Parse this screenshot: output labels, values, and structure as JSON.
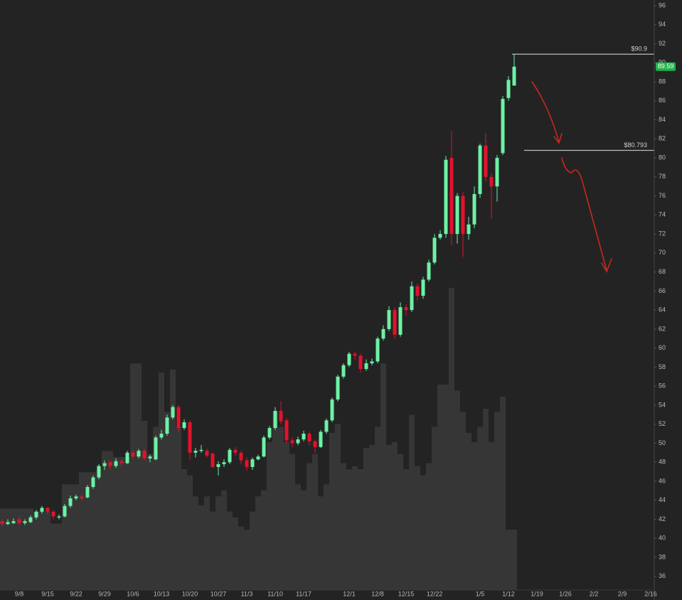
{
  "chart_data": {
    "type": "candlestick",
    "categories": [
      null,
      null,
      null,
      "9/8",
      null,
      null,
      null,
      null,
      "9/15",
      null,
      null,
      null,
      null,
      "9/22",
      null,
      null,
      null,
      null,
      "9/29",
      null,
      null,
      null,
      null,
      "10/6",
      null,
      null,
      null,
      null,
      "10/13",
      null,
      null,
      null,
      null,
      "10/20",
      null,
      null,
      null,
      null,
      "10/27",
      null,
      null,
      null,
      null,
      "11/3",
      null,
      null,
      null,
      null,
      "11/10",
      null,
      null,
      null,
      null,
      "11/17",
      null,
      null,
      null,
      null,
      null,
      null,
      null,
      "12/1",
      null,
      null,
      null,
      null,
      "12/8",
      null,
      null,
      null,
      null,
      "12/15",
      null,
      null,
      null,
      null,
      "12/22",
      null,
      null,
      null,
      null,
      null,
      null,
      null,
      "1/5",
      null,
      null,
      null,
      null,
      "1/12",
      null,
      null,
      null,
      null,
      "1/19",
      null,
      null,
      null,
      null,
      "1/26",
      null,
      null,
      null,
      null,
      "2/2",
      null,
      null,
      null,
      null,
      "2/9",
      null,
      null,
      null,
      null,
      "2/16"
    ],
    "open": [
      41.8,
      41.5,
      41.6,
      42,
      41.6,
      41.7,
      42.2,
      42.8,
      43.2,
      42.8,
      42.2,
      42.3,
      43.4,
      44.2,
      44.4,
      44.3,
      45.4,
      46.4,
      47.6,
      48,
      47.6,
      48.1,
      47.9,
      49,
      48.6,
      49.2,
      48.4,
      48.3,
      50.6,
      51,
      52.7,
      53.8,
      51.6,
      52.2,
      49,
      49.2,
      49.2,
      48.9,
      47.5,
      47.8,
      48,
      49.3,
      49,
      48.2,
      47.5,
      48.3,
      48.6,
      50.6,
      51.6,
      53.4,
      52.4,
      50.3,
      50,
      50.4,
      51,
      50.2,
      49.6,
      51.2,
      52.4,
      54.6,
      57,
      58.2,
      59.4,
      59.2,
      57.8,
      58.4,
      58.6,
      61,
      62,
      64,
      61.4,
      64.3,
      64,
      66.5,
      65.5,
      67.2,
      69,
      71.6,
      72,
      80,
      72,
      76,
      72,
      73,
      76.2,
      81.3,
      78,
      77,
      80.5,
      86.3,
      87.6,
      null,
      null,
      null,
      null,
      null,
      null,
      null,
      null,
      null,
      null,
      null,
      null,
      null,
      null,
      null,
      null,
      null,
      null,
      null,
      null,
      null,
      null,
      null,
      null
    ],
    "high": [
      42,
      42,
      42.1,
      42.3,
      42,
      42.4,
      43,
      43.4,
      43.3,
      43,
      42.5,
      43.6,
      44.5,
      44.6,
      44.6,
      45.6,
      46.6,
      47.8,
      48.2,
      48.2,
      48.4,
      48.3,
      49.2,
      49.3,
      49.4,
      49.4,
      48.8,
      50.8,
      51.4,
      53,
      54,
      54,
      52.5,
      52.4,
      49.5,
      49.8,
      49.4,
      49,
      48.1,
      48.3,
      49.5,
      49.6,
      49.2,
      48.5,
      48.5,
      48.8,
      50.8,
      51.8,
      53.8,
      54.4,
      52.6,
      50.6,
      50.7,
      51.3,
      51.2,
      50.4,
      51.4,
      52.6,
      54.8,
      57.2,
      58.4,
      59.6,
      59.6,
      59.4,
      58.8,
      58.9,
      61.2,
      62.4,
      64.4,
      64.3,
      64.8,
      64.6,
      67,
      66.8,
      67.5,
      69.3,
      72,
      72.4,
      80.2,
      82.8,
      76.3,
      76.4,
      73.8,
      77,
      81.5,
      82.6,
      78.4,
      80.3,
      86.5,
      88.6,
      90.9,
      null,
      null,
      null,
      null,
      null,
      null,
      null,
      null,
      null,
      null,
      null,
      null,
      null,
      null,
      null,
      null,
      null,
      null,
      null,
      null,
      null,
      null,
      null,
      null
    ],
    "low": [
      41.3,
      41.4,
      41.5,
      41.4,
      41.4,
      41.6,
      42,
      42.6,
      42.5,
      42,
      42,
      42.2,
      43.2,
      44,
      44,
      44.2,
      45.2,
      46.2,
      47.2,
      47.3,
      47.4,
      47.6,
      47.8,
      48.4,
      48.4,
      48.2,
      48,
      48.2,
      50.4,
      50.8,
      52.5,
      51.2,
      51.4,
      48.2,
      48.5,
      49,
      48.5,
      47.4,
      46.6,
      47.5,
      47.8,
      48.7,
      47.8,
      47.1,
      47.2,
      48.2,
      48.5,
      50.4,
      51.4,
      52,
      50,
      49.6,
      49.8,
      50.2,
      49.8,
      49,
      49.5,
      51,
      52.2,
      54.4,
      56.8,
      58,
      58.8,
      57.4,
      57.6,
      58.2,
      58.4,
      60.8,
      61.8,
      61,
      61.2,
      63.4,
      63.8,
      65,
      65.2,
      67,
      68.8,
      71.4,
      71.6,
      70.8,
      71,
      69.6,
      71.4,
      72.6,
      75.8,
      77.5,
      73.6,
      75.4,
      80.3,
      86,
      87.6,
      null,
      null,
      null,
      null,
      null,
      null,
      null,
      null,
      null,
      null,
      null,
      null,
      null,
      null,
      null,
      null,
      null,
      null,
      null,
      null,
      null,
      null,
      null,
      null
    ],
    "close": [
      41.5,
      41.7,
      41.8,
      41.6,
      41.8,
      42.2,
      42.8,
      43.2,
      42.8,
      42.3,
      42.3,
      43.4,
      44.2,
      44.4,
      44.2,
      45.4,
      46.4,
      47.6,
      47.9,
      47.6,
      48.1,
      47.9,
      49,
      48.6,
      49.2,
      48.4,
      48.6,
      50.6,
      51,
      52.7,
      53.8,
      51.6,
      52.2,
      49,
      49.2,
      49.3,
      48.7,
      47.5,
      47.8,
      48,
      49.3,
      49,
      48.2,
      47.5,
      48.3,
      48.6,
      50.6,
      51.6,
      53.4,
      52.3,
      50.3,
      50,
      50.4,
      51,
      50.2,
      49.6,
      51.2,
      52.4,
      54.6,
      57,
      58.2,
      59.4,
      59.2,
      57.8,
      58.4,
      58.6,
      61,
      62,
      64,
      61.4,
      64.3,
      64,
      66.5,
      65.5,
      67.2,
      69,
      71.6,
      72,
      79.8,
      72,
      76,
      72,
      73,
      76.2,
      81.3,
      78,
      77,
      80,
      86.2,
      88.2,
      89.59,
      null,
      null,
      null,
      null,
      null,
      null,
      null,
      null,
      null,
      null,
      null,
      null,
      null,
      null,
      null,
      null,
      null,
      null,
      null,
      null,
      null,
      null,
      null,
      null
    ],
    "volume": [
      27,
      27,
      27,
      27,
      27,
      27,
      26,
      26,
      26,
      22,
      22,
      35,
      35,
      35,
      39,
      39,
      39,
      40,
      46,
      46,
      44,
      44,
      44,
      75,
      75,
      56,
      45,
      54,
      72,
      59,
      73,
      54,
      40,
      38,
      31,
      28,
      31,
      26,
      31,
      33,
      26,
      24,
      21,
      20,
      26,
      31,
      33,
      49,
      59,
      54,
      49,
      45,
      35,
      33,
      42,
      45,
      31,
      35,
      52,
      55,
      42,
      40,
      41,
      40,
      47,
      48,
      54,
      75,
      48,
      49,
      45,
      40,
      58,
      41,
      38,
      42,
      54,
      68,
      68,
      100,
      66,
      59,
      52,
      49,
      54,
      60,
      49,
      59,
      64,
      20,
      20,
      null,
      null,
      null,
      null,
      null,
      null,
      null,
      null,
      null,
      null,
      null,
      null,
      null,
      null,
      null,
      null,
      null,
      null,
      null,
      null,
      null,
      null,
      null,
      null
    ],
    "up_color": "#6cf2a4",
    "down_color": "#e3122c",
    "volume_color": "#363636",
    "ylim": [
      34.56,
      96.6
    ],
    "yticks": [
      36,
      38,
      40,
      42,
      44,
      46,
      48,
      50,
      52,
      54,
      56,
      58,
      60,
      62,
      64,
      66,
      68,
      70,
      72,
      74,
      76,
      78,
      80,
      82,
      84,
      86,
      88,
      90,
      92,
      94,
      96
    ],
    "price_lines": [
      {
        "value": 90.9,
        "label": "$90.9"
      },
      {
        "value": 80.793,
        "label": "$80.793"
      }
    ],
    "last_price": {
      "value": 89.59,
      "label": "89.59"
    }
  }
}
